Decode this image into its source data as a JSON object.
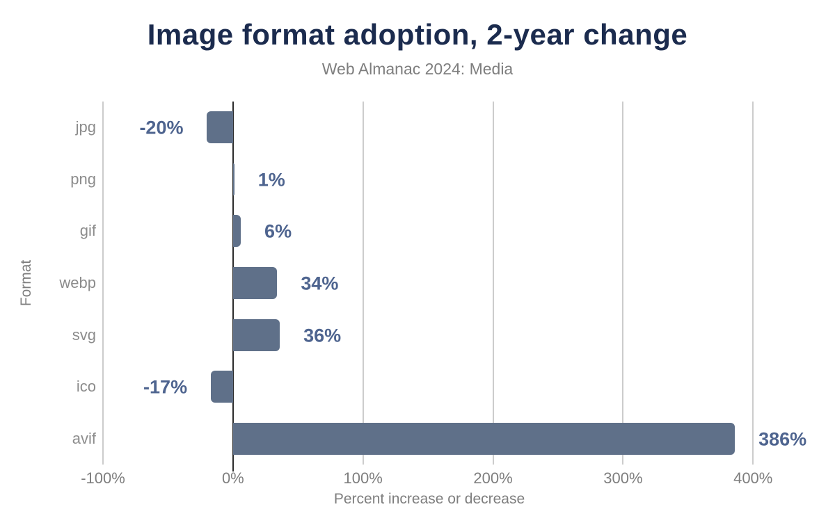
{
  "chart_data": {
    "type": "bar",
    "orientation": "horizontal",
    "title": "Image format adoption, 2-year change",
    "subtitle": "Web Almanac 2024: Media",
    "xlabel": "Percent increase or decrease",
    "ylabel": "Format",
    "categories": [
      "jpg",
      "png",
      "gif",
      "webp",
      "svg",
      "ico",
      "avif"
    ],
    "values": [
      -20,
      1,
      6,
      34,
      36,
      -17,
      386
    ],
    "value_labels": [
      "-20%",
      "1%",
      "6%",
      "34%",
      "36%",
      "-17%",
      "386%"
    ],
    "xlim": [
      -100,
      455
    ],
    "xticks": [
      -100,
      0,
      100,
      200,
      300,
      400
    ],
    "xtick_labels": [
      "-100%",
      "0%",
      "100%",
      "200%",
      "300%",
      "400%"
    ],
    "grid": true,
    "legend": false,
    "colors": {
      "bar": "#5f7089",
      "value_label": "#4e648f",
      "title": "#1b2b4e",
      "subtitle": "#7e7e7e",
      "axis_text": "#7e7e7e",
      "category_text": "#8c8c8c",
      "gridline": "#cccccc",
      "zeroline": "#2b2b2b",
      "background": "#ffffff"
    }
  }
}
